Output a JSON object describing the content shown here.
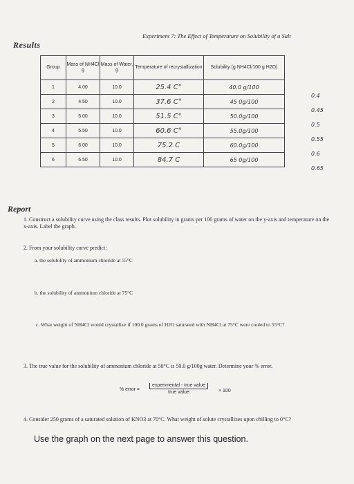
{
  "header": {
    "experiment_title": "Experiment 7: The Effect of Temperature on Solubility of a Salt",
    "results_heading": "Results"
  },
  "table": {
    "headers": [
      "Group",
      "Mass of NH4Cl g",
      "Mass of Water, g",
      "Temperature of recrystallization",
      "Solubility (g NH4Cl/100 g H2O)"
    ],
    "rows": [
      {
        "group": "1",
        "mass_salt": "4.00",
        "mass_water": "10.0",
        "temperature": "25.4 C°",
        "solubility": "40.0 g/100",
        "side": "0.4"
      },
      {
        "group": "2",
        "mass_salt": "4.50",
        "mass_water": "10.0",
        "temperature": "37.6 C°",
        "solubility": "45 0g/100",
        "side": "0.45"
      },
      {
        "group": "3",
        "mass_salt": "5.00",
        "mass_water": "10.0",
        "temperature": "51.5 C°",
        "solubility": "50.0g/100",
        "side": "0.5"
      },
      {
        "group": "4",
        "mass_salt": "5.50",
        "mass_water": "10.0",
        "temperature": "60.6 C°",
        "solubility": "55.0g/100",
        "side": "0.55"
      },
      {
        "group": "5",
        "mass_salt": "6.00",
        "mass_water": "10.0",
        "temperature": "75.2 C",
        "solubility": "60.0g/100",
        "side": "0.6"
      },
      {
        "group": "6",
        "mass_salt": "6.50",
        "mass_water": "10.0",
        "temperature": "84.7 C",
        "solubility": "65 0g/100",
        "side": "0.65"
      }
    ]
  },
  "report": {
    "heading": "Report",
    "q1": "1.  Construct a solubility curve using the class results. Plot solubility in grams per 100 grams of water on the y-axis and temperature on the x-axis. Label the graph.",
    "q2": "2.  From your solubility curve predict:",
    "q2a": "a.   the solubility of ammonium chloride at 55°C",
    "q2b": "b.   the solubility of ammonium chloride at 75°C",
    "q2c": "c.   What weight of NH4Cl would crystallize if 100.0 grams of H2O saturated with NH4Cl at 75°C were cooled to 55°C?",
    "q3": "3.  The true value for the solubility of ammonium chloride at 50°C is 50.0 g/100g water. Determine your % error.",
    "formula_lhs": "% error =",
    "formula_num": "experimental - true value",
    "formula_den": "true value",
    "formula_mult": "× 100",
    "q4": "4.  Consider 250 grams of a saturated solution of KNO3 at 70°C. What weight of solute crystallizes upon chilling to 0°C?",
    "note": "Use the graph on the next page to answer this question."
  }
}
